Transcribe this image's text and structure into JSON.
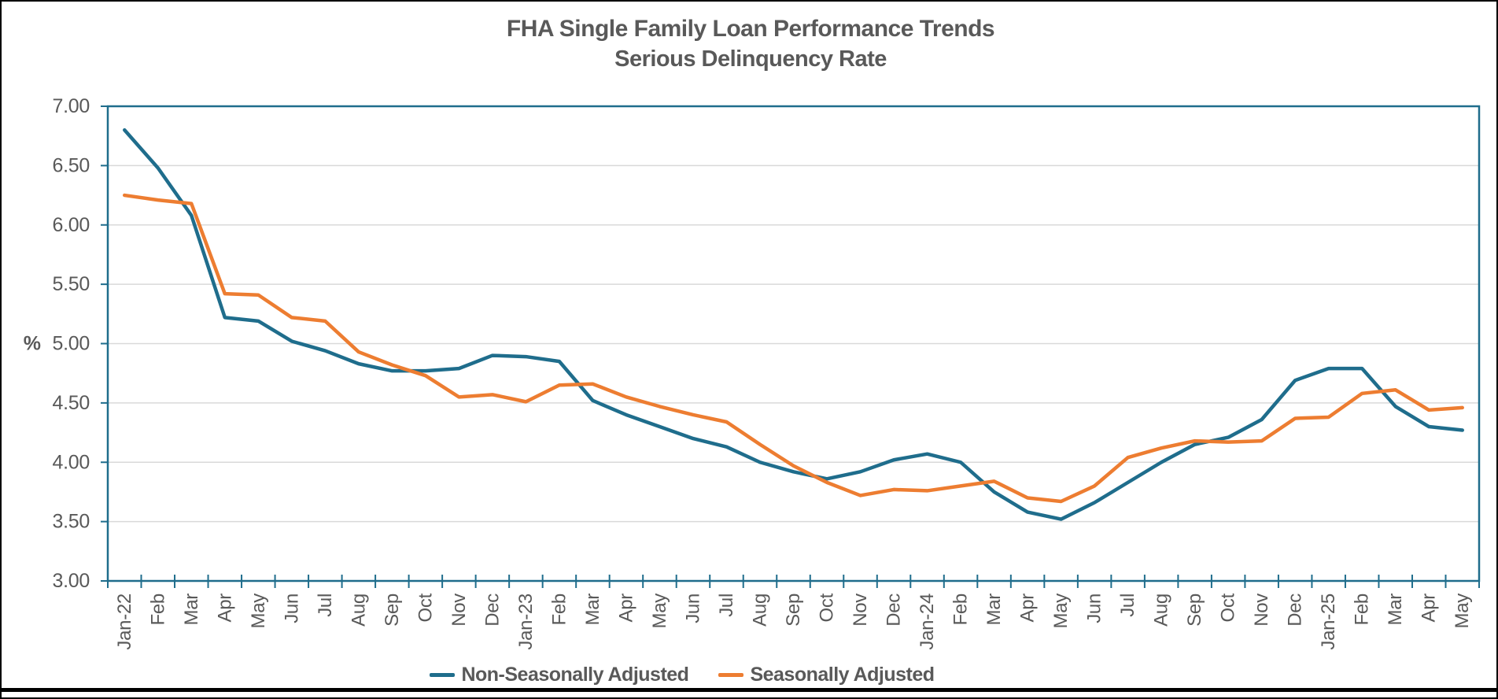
{
  "chart_data": {
    "type": "line",
    "title": "FHA Single Family Loan Performance Trends",
    "subtitle": "Serious Delinquency Rate",
    "ylabel": "%",
    "ylim": [
      3.0,
      7.0
    ],
    "ytick_step": 0.5,
    "y_ticks": [
      "7.00",
      "6.50",
      "6.00",
      "5.50",
      "5.00",
      "4.50",
      "4.00",
      "3.50",
      "3.00"
    ],
    "grid": true,
    "legend_position": "bottom",
    "categories": [
      "Jan-22",
      "Feb",
      "Mar",
      "Apr",
      "May",
      "Jun",
      "Jul",
      "Aug",
      "Sep",
      "Oct",
      "Nov",
      "Dec",
      "Jan-23",
      "Feb",
      "Mar",
      "Apr",
      "May",
      "Jun",
      "Jul",
      "Aug",
      "Sep",
      "Oct",
      "Nov",
      "Dec",
      "Jan-24",
      "Feb",
      "Mar",
      "Apr",
      "May",
      "Jun",
      "Jul",
      "Aug",
      "Sep",
      "Oct",
      "Nov",
      "Dec",
      "Jan-25",
      "Feb",
      "Mar",
      "Apr",
      "May"
    ],
    "series": [
      {
        "name": "Non-Seasonally Adjusted",
        "color": "#1F6D8C",
        "values": [
          6.8,
          6.48,
          6.08,
          5.22,
          5.19,
          5.02,
          4.94,
          4.83,
          4.77,
          4.77,
          4.79,
          4.9,
          4.89,
          4.85,
          4.52,
          4.4,
          4.3,
          4.2,
          4.13,
          4.0,
          3.92,
          3.86,
          3.92,
          4.02,
          4.07,
          4.0,
          3.75,
          3.58,
          3.52,
          3.66,
          3.83,
          4.0,
          4.15,
          4.21,
          4.36,
          4.69,
          4.79,
          4.79,
          4.47,
          4.3,
          4.27
        ]
      },
      {
        "name": "Seasonally Adjusted",
        "color": "#ED7D31",
        "values": [
          6.25,
          6.21,
          6.18,
          5.42,
          5.41,
          5.22,
          5.19,
          4.93,
          4.82,
          4.73,
          4.55,
          4.57,
          4.51,
          4.65,
          4.66,
          4.55,
          4.47,
          4.4,
          4.34,
          4.15,
          3.97,
          3.83,
          3.72,
          3.77,
          3.76,
          3.8,
          3.84,
          3.7,
          3.67,
          3.8,
          4.04,
          4.12,
          4.18,
          4.17,
          4.18,
          4.37,
          4.38,
          4.58,
          4.61,
          4.44,
          4.46
        ]
      }
    ],
    "colors": {
      "axis": "#1F6D8C",
      "grid": "#D9D9D9",
      "text": "#595959",
      "background": "#FFFFFF",
      "page_border": "#000000"
    }
  }
}
